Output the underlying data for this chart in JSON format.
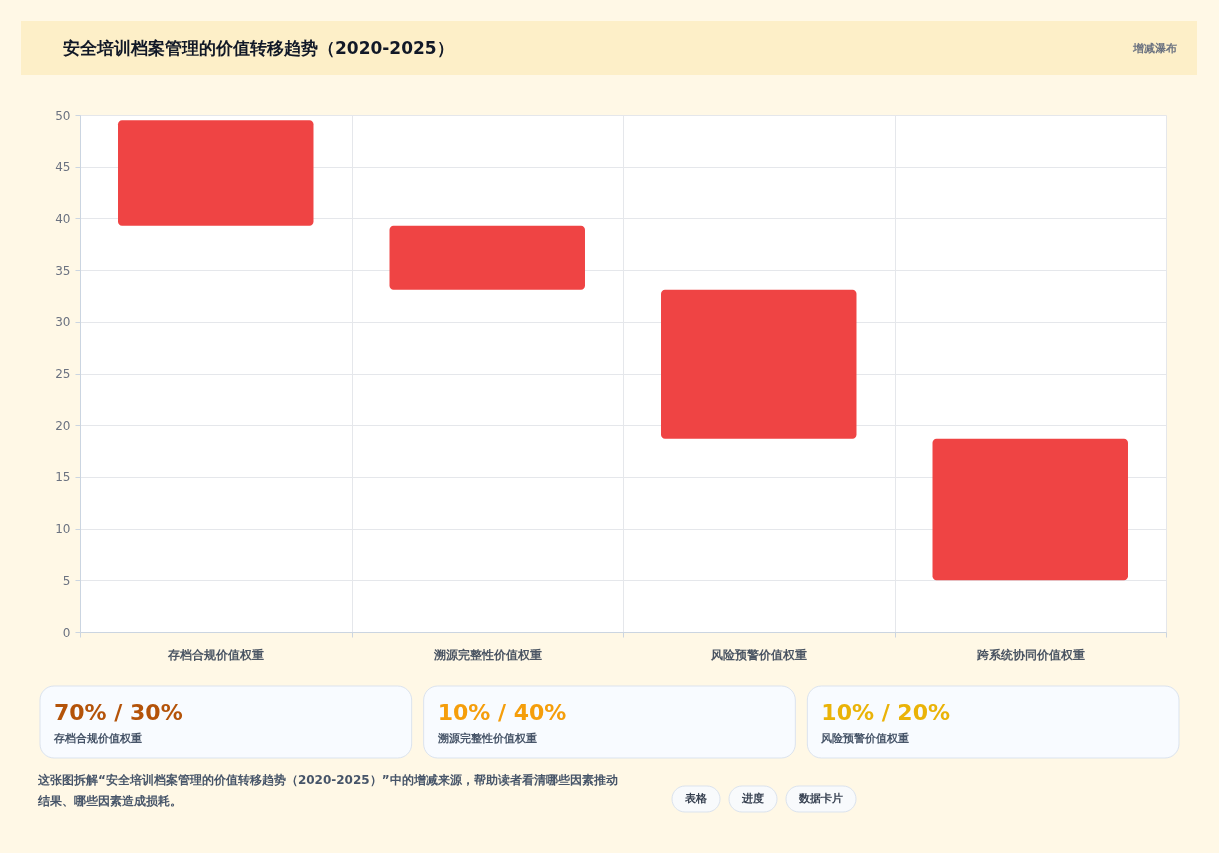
{
  "chart_data": [
    {
      "type": "bar",
      "title": "安全培训档案管理的价值转移趋势（2020-2025）",
      "categories": [
        "存档合规价值权重",
        "溯源完整性价值权重",
        "风险预警价值权重",
        "跨系统协同价值权重"
      ],
      "values": [
        10.2,
        6.2,
        14.4,
        13.7
      ],
      "base": [
        39.3,
        33.1,
        18.7,
        5.0
      ],
      "color": "#ef4444",
      "ylim": [
        0,
        50
      ],
      "yticks": [
        0,
        5,
        10,
        15,
        20,
        25,
        30,
        35,
        40,
        45,
        50
      ],
      "grid": true,
      "annotations": [
        "增减瀑布",
        "这张图拆解“安全培训档案管理的价值转移趋势（2020-2025）”中的增减来源，帮助读者看清哪些因素推动结果、哪些因素造成损耗。",
        "表格",
        "进度",
        "数据卡片"
      ]
    },
    {
      "type": "other",
      "title": "70% / 30%",
      "subtitle": "存档合规价值权重",
      "color": "#b45309"
    },
    {
      "type": "other",
      "title": "10% / 40%",
      "subtitle": "溯源完整性价值权重",
      "color": "#f59e0b"
    },
    {
      "type": "other",
      "title": "10% / 20%",
      "subtitle": "风险预警价值权重",
      "color": "#eab308"
    }
  ]
}
